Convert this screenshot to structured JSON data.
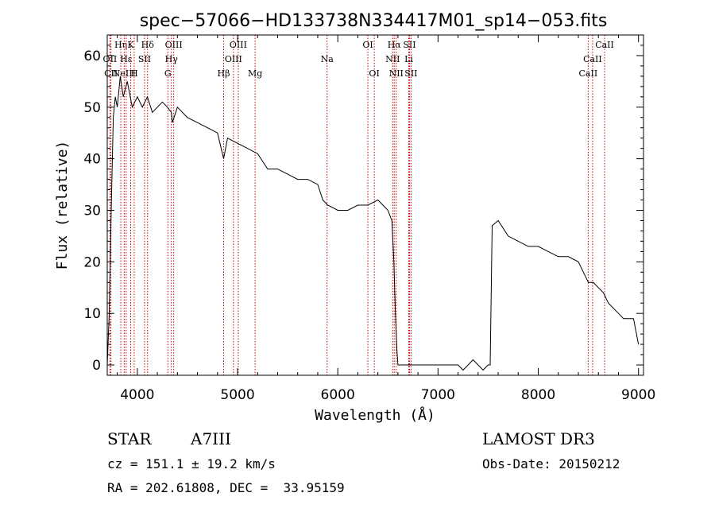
{
  "chart_data": {
    "type": "line",
    "title": "spec−57066−HD133738N334417M01_sp14−053.fits",
    "xlabel": "Wavelength (Å)",
    "ylabel": "Flux (relative)",
    "xlim": [
      3700,
      9050
    ],
    "ylim": [
      -2,
      64
    ],
    "xticks": [
      4000,
      5000,
      6000,
      7000,
      8000,
      9000
    ],
    "yticks": [
      0,
      10,
      20,
      30,
      40,
      50,
      60
    ],
    "series": [
      {
        "name": "flux",
        "x": [
          3700,
          3720,
          3740,
          3760,
          3780,
          3800,
          3830,
          3860,
          3900,
          3950,
          4000,
          4050,
          4100,
          4150,
          4200,
          4250,
          4300,
          4340,
          4350,
          4400,
          4500,
          4600,
          4700,
          4800,
          4861,
          4900,
          5000,
          5100,
          5200,
          5300,
          5400,
          5500,
          5600,
          5700,
          5800,
          5850,
          5900,
          6000,
          6100,
          6200,
          6300,
          6400,
          6450,
          6500,
          6540,
          6560,
          6575,
          6590,
          6600,
          6700,
          6800,
          6900,
          7000,
          7100,
          7200,
          7250,
          7300,
          7350,
          7400,
          7450,
          7500,
          7520,
          7540,
          7600,
          7700,
          7800,
          7900,
          8000,
          8100,
          8200,
          8300,
          8400,
          8450,
          8500,
          8550,
          8600,
          8650,
          8700,
          8750,
          8800,
          8850,
          8900,
          8950,
          9000
        ],
        "y": [
          0,
          10,
          30,
          48,
          52,
          50,
          56,
          52,
          55,
          50,
          52,
          50,
          52,
          49,
          50,
          51,
          50,
          49,
          47,
          50,
          48,
          47,
          46,
          45,
          40,
          44,
          43,
          42,
          41,
          38,
          38,
          37,
          36,
          36,
          35,
          32,
          31,
          30,
          30,
          31,
          31,
          32,
          31,
          30,
          28,
          20,
          10,
          3,
          0,
          0,
          0,
          0,
          0,
          0,
          0,
          -1,
          0,
          1,
          0,
          -1,
          0,
          0,
          27,
          28,
          25,
          24,
          23,
          23,
          22,
          21,
          21,
          20,
          18,
          16,
          16,
          15,
          14,
          12,
          11,
          10,
          9,
          9,
          9,
          4
        ]
      }
    ],
    "line_markers": [
      {
        "label": "Hη",
        "x": 3835,
        "row": 0
      },
      {
        "label": "OII",
        "x": 3727,
        "row": 1
      },
      {
        "label": "CII",
        "x": 3737,
        "row": 2
      },
      {
        "label": "Hε",
        "x": 3889,
        "row": 1
      },
      {
        "label": "NeIII",
        "x": 3869,
        "row": 2
      },
      {
        "label": "K",
        "x": 3934,
        "row": 0
      },
      {
        "label": "SII",
        "x": 4072,
        "row": 1
      },
      {
        "label": "H",
        "x": 3969,
        "row": 2
      },
      {
        "label": "Hδ",
        "x": 4102,
        "row": 0
      },
      {
        "label": "OIII",
        "x": 4363,
        "row": 0
      },
      {
        "label": "Hγ",
        "x": 4340,
        "row": 1
      },
      {
        "label": "G",
        "x": 4305,
        "row": 2
      },
      {
        "label": "Hβ",
        "x": 4861,
        "row": 2
      },
      {
        "label": "OIII",
        "x": 5007,
        "row": 0
      },
      {
        "label": "OIII",
        "x": 4959,
        "row": 1
      },
      {
        "label": "Mg",
        "x": 5175,
        "row": 2
      },
      {
        "label": "Na",
        "x": 5893,
        "row": 1
      },
      {
        "label": "OI",
        "x": 6300,
        "row": 0
      },
      {
        "label": "OI",
        "x": 6364,
        "row": 2
      },
      {
        "label": "Hα",
        "x": 6563,
        "row": 0
      },
      {
        "label": "SII",
        "x": 6716,
        "row": 0
      },
      {
        "label": "NII",
        "x": 6548,
        "row": 1
      },
      {
        "label": "Li",
        "x": 6708,
        "row": 1
      },
      {
        "label": "NII",
        "x": 6583,
        "row": 2
      },
      {
        "label": "SII",
        "x": 6731,
        "row": 2
      },
      {
        "label": "CaII",
        "x": 8662,
        "row": 0
      },
      {
        "label": "CaII",
        "x": 8542,
        "row": 1
      },
      {
        "label": "CaII",
        "x": 8498,
        "row": 2
      }
    ],
    "line_colors": {
      "spectrum": "#000000",
      "markers": "#cc0000"
    }
  },
  "info": {
    "class": "STAR",
    "subclass": "A7III",
    "survey": "LAMOST DR3",
    "redshift": "cz = 151.1 ± 19.2 km/s",
    "obs_date": "Obs-Date: 20150212",
    "coords": "RA = 202.61808, DEC =  33.95159"
  }
}
